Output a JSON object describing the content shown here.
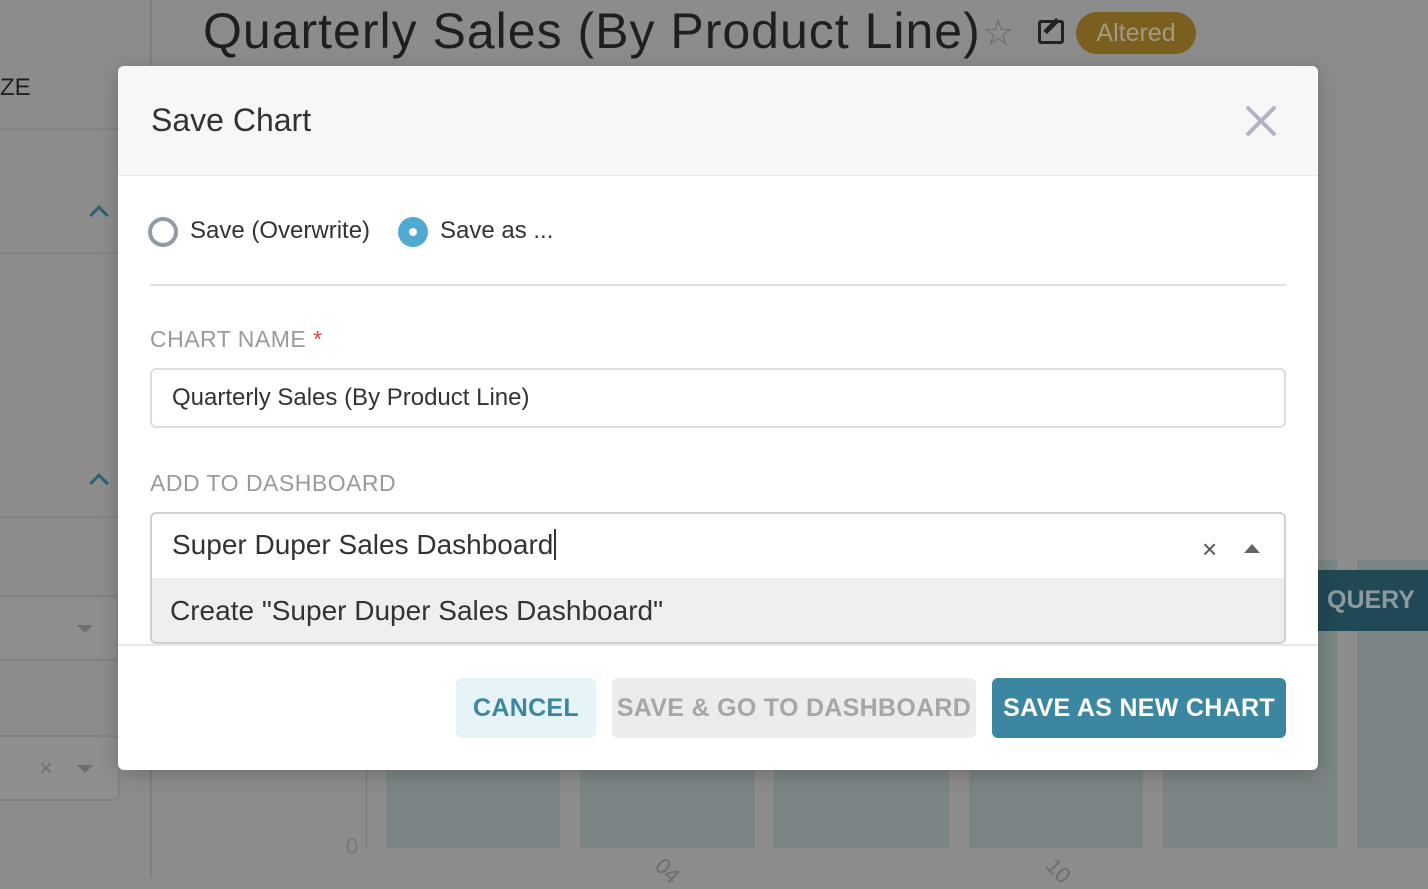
{
  "background": {
    "chart_title": "Quarterly Sales (By Product Line)",
    "badge_altered": "Altered",
    "sidebar_fragment": "ZE",
    "query_button_fragment": "QUERY",
    "y_axis_zero": "0",
    "x_tick_1": "04",
    "x_tick_2": "10",
    "colors": {
      "badge": "#7a5f1e",
      "query_button": "#214855",
      "bars": "#7b8485"
    }
  },
  "modal": {
    "title": "Save Chart",
    "radio_options": [
      {
        "label": "Save (Overwrite)",
        "selected": false
      },
      {
        "label": "Save as ...",
        "selected": true
      }
    ],
    "chart_name_label": "CHART NAME",
    "required_marker": "*",
    "chart_name_value": "Quarterly Sales (By Product Line)",
    "dashboard_label": "ADD TO DASHBOARD",
    "dashboard_value": "Super Duper Sales Dashboard",
    "dashboard_option": "Create \"Super Duper Sales Dashboard\"",
    "buttons": {
      "cancel": "CANCEL",
      "save_go": "SAVE & GO TO DASHBOARD",
      "save_new": "SAVE AS NEW CHART"
    },
    "colors": {
      "primary": "#3b87a1",
      "radio_selected": "#4eaad0",
      "required": "#e04355"
    }
  }
}
